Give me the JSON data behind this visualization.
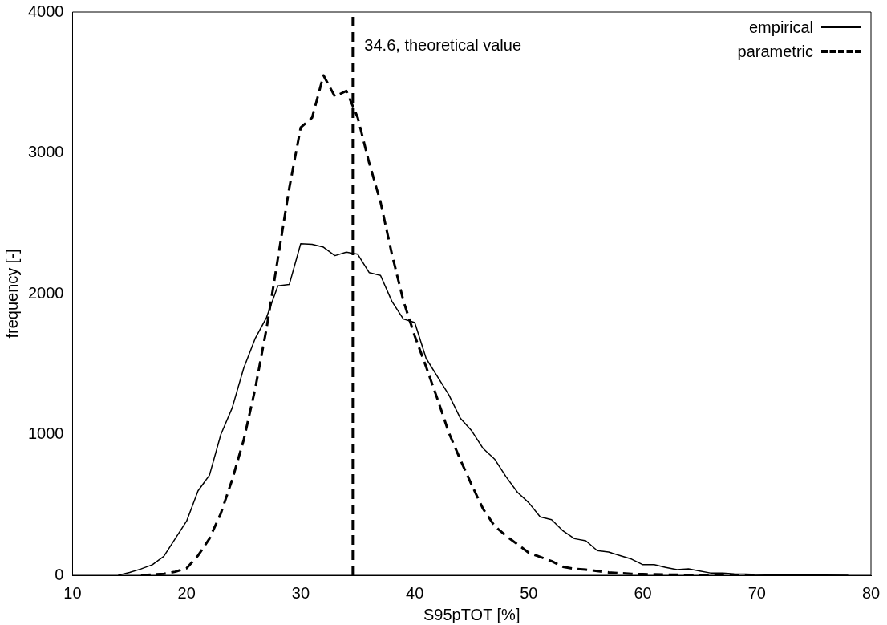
{
  "chart_data": {
    "type": "line",
    "xlabel": "S95pTOT [%]",
    "ylabel": "frequency [-]",
    "xlim": [
      10,
      80
    ],
    "xticks": [
      10,
      20,
      30,
      40,
      50,
      60,
      70,
      80
    ],
    "ylim": [
      0,
      4000
    ],
    "yticks": [
      0,
      1000,
      2000,
      3000,
      4000
    ],
    "grid": false,
    "legend": "top right",
    "marker": "none",
    "series": [
      {
        "name": "empirical",
        "color": "#000000",
        "line_style": "solid",
        "x": [
          14,
          15,
          16,
          17,
          18,
          19,
          20,
          21,
          22,
          23,
          24,
          25,
          26,
          27,
          28,
          29,
          30,
          31,
          32,
          33,
          34,
          35,
          36,
          37,
          38,
          39,
          40,
          41,
          42,
          43,
          44,
          45,
          46,
          47,
          48,
          49,
          50,
          51,
          52,
          53,
          54,
          55,
          56,
          57,
          58,
          59,
          60,
          61,
          62,
          63,
          64,
          65,
          66,
          67,
          68,
          69,
          70,
          72,
          74,
          76,
          78
        ],
        "values": [
          0,
          20,
          45,
          75,
          135,
          260,
          385,
          600,
          710,
          1000,
          1190,
          1470,
          1680,
          1830,
          2055,
          2065,
          2355,
          2350,
          2330,
          2270,
          2295,
          2280,
          2150,
          2130,
          1945,
          1820,
          1795,
          1540,
          1410,
          1280,
          1115,
          1025,
          900,
          825,
          700,
          590,
          515,
          415,
          395,
          315,
          260,
          245,
          175,
          165,
          140,
          115,
          75,
          75,
          55,
          40,
          45,
          30,
          15,
          15,
          10,
          8,
          5,
          3,
          1,
          1,
          0
        ]
      },
      {
        "name": "parametric",
        "color": "#000000",
        "line_style": "dashed",
        "x": [
          16,
          17,
          18,
          19,
          20,
          21,
          22,
          23,
          24,
          25,
          26,
          27,
          28,
          29,
          30,
          31,
          32,
          33,
          34,
          35,
          36,
          37,
          38,
          39,
          40,
          41,
          42,
          43,
          44,
          45,
          46,
          47,
          48,
          49,
          50,
          51,
          52,
          53,
          54,
          55,
          56,
          57,
          58,
          59,
          60,
          62,
          64,
          66,
          68,
          70
        ],
        "values": [
          0,
          5,
          10,
          25,
          50,
          140,
          260,
          440,
          680,
          960,
          1320,
          1750,
          2250,
          2750,
          3180,
          3250,
          3550,
          3400,
          3440,
          3250,
          2930,
          2650,
          2280,
          1950,
          1700,
          1480,
          1250,
          1010,
          820,
          640,
          470,
          350,
          280,
          220,
          160,
          130,
          100,
          60,
          45,
          40,
          30,
          20,
          15,
          10,
          8,
          5,
          3,
          2,
          1,
          0
        ]
      }
    ],
    "ref_lines": [
      {
        "axis": "x",
        "value": 34.6,
        "label": "34.6, theoretical value",
        "line_style": "dashed",
        "color": "#000000"
      }
    ]
  }
}
